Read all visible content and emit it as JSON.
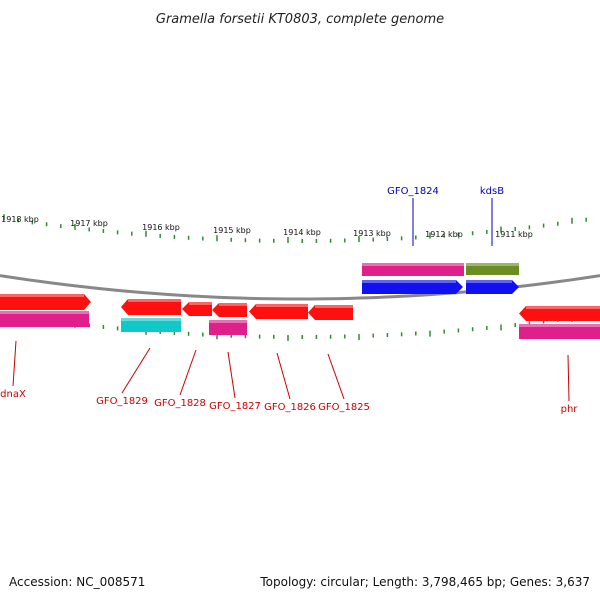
{
  "title": "Gramella forsetii KT0803, complete genome",
  "footer": {
    "accession": "Accession: NC_008571",
    "summary": "Topology: circular; Length: 3,798,465 bp; Genes: 3,637"
  },
  "ticks": [
    "1918 kbp",
    "1917 kbp",
    "1916 kbp",
    "1915 kbp",
    "1914 kbp",
    "1913 kbp",
    "1912 kbp",
    "1911 kbp"
  ],
  "genes": [
    "dnaX",
    "GFO_1829",
    "GFO_1828",
    "GFO_1827",
    "GFO_1826",
    "GFO_1825",
    "GFO_1824",
    "kdsB",
    "phr"
  ],
  "colors": {
    "red": "#ff1010",
    "pink": "#e0208a",
    "cyan": "#10c8c8",
    "blue": "#1010f0",
    "olive": "#6b8e23",
    "tick": "#2e8b2e",
    "backbone": "#888888",
    "label_red": "#cc0000",
    "label_blue": "#0000bb"
  }
}
